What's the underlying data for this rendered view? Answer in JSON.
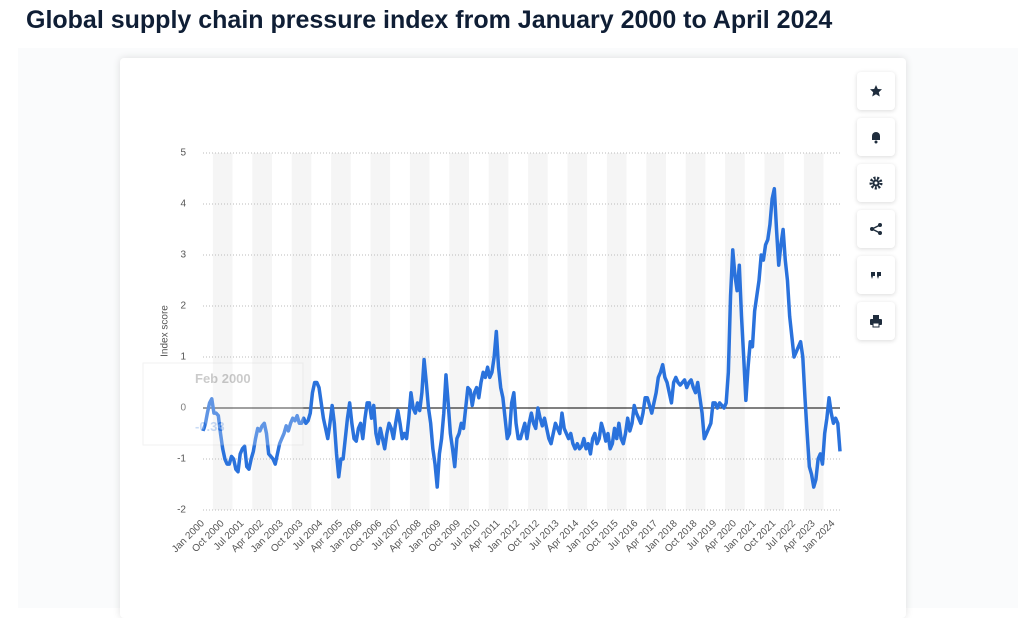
{
  "chart_data": {
    "type": "line",
    "title": "Global supply chain pressure index from January 2000 to April 2024",
    "y_label": "Index score",
    "categories": [
      "Jan 2000",
      null,
      null,
      null,
      null,
      null,
      null,
      null,
      null,
      "Oct 2000",
      null,
      null,
      null,
      null,
      null,
      null,
      null,
      null,
      "Jul 2001",
      null,
      null,
      null,
      null,
      null,
      null,
      null,
      null,
      "Apr 2002",
      null,
      null,
      null,
      null,
      null,
      null,
      null,
      null,
      "Jan 2003",
      null,
      null,
      null,
      null,
      null,
      null,
      null,
      null,
      "Oct 2003",
      null,
      null,
      null,
      null,
      null,
      null,
      null,
      null,
      "Jul 2004",
      null,
      null,
      null,
      null,
      null,
      null,
      null,
      null,
      "Apr 2005",
      null,
      null,
      null,
      null,
      null,
      null,
      null,
      null,
      "Jan 2006",
      null,
      null,
      null,
      null,
      null,
      null,
      null,
      null,
      "Oct 2006",
      null,
      null,
      null,
      null,
      null,
      null,
      null,
      null,
      "Jul 2007",
      null,
      null,
      null,
      null,
      null,
      null,
      null,
      null,
      "Apr 2008",
      null,
      null,
      null,
      null,
      null,
      null,
      null,
      null,
      "Jan 2009",
      null,
      null,
      null,
      null,
      null,
      null,
      null,
      null,
      "Oct 2009",
      null,
      null,
      null,
      null,
      null,
      null,
      null,
      null,
      "Jul 2010",
      null,
      null,
      null,
      null,
      null,
      null,
      null,
      null,
      "Apr 2011",
      null,
      null,
      null,
      null,
      null,
      null,
      null,
      null,
      "Jan 2012",
      null,
      null,
      null,
      null,
      null,
      null,
      null,
      null,
      "Oct 2012",
      null,
      null,
      null,
      null,
      null,
      null,
      null,
      null,
      "Jul 2013",
      null,
      null,
      null,
      null,
      null,
      null,
      null,
      null,
      "Apr 2014",
      null,
      null,
      null,
      null,
      null,
      null,
      null,
      null,
      "Jan 2015",
      null,
      null,
      null,
      null,
      null,
      null,
      null,
      null,
      "Oct 2015",
      null,
      null,
      null,
      null,
      null,
      null,
      null,
      null,
      "Jul 2016",
      null,
      null,
      null,
      null,
      null,
      null,
      null,
      null,
      "Apr 2017",
      null,
      null,
      null,
      null,
      null,
      null,
      null,
      null,
      "Jan 2018",
      null,
      null,
      null,
      null,
      null,
      null,
      null,
      null,
      "Oct 2018",
      null,
      null,
      null,
      null,
      null,
      null,
      null,
      null,
      "Jul 2019",
      null,
      null,
      null,
      null,
      null,
      null,
      null,
      null,
      "Apr 2020",
      null,
      null,
      null,
      null,
      null,
      null,
      null,
      null,
      "Jan 2021",
      null,
      null,
      null,
      null,
      null,
      null,
      null,
      null,
      "Oct 2021",
      null,
      null,
      null,
      null,
      null,
      null,
      null,
      null,
      "Jul 2022",
      null,
      null,
      null,
      null,
      null,
      null,
      null,
      null,
      "Apr 2023",
      null,
      null,
      null,
      null,
      null,
      null,
      null,
      null,
      "Jan 2024",
      null,
      null,
      null
    ],
    "series": [
      {
        "color": "#2a72dc",
        "values": [
          -0.45,
          -0.33,
          -0.1,
          0.1,
          0.18,
          -0.1,
          -0.1,
          -0.15,
          -0.5,
          -0.8,
          -1.0,
          -1.1,
          -1.1,
          -0.95,
          -1.0,
          -1.2,
          -1.25,
          -0.9,
          -0.8,
          -0.75,
          -1.15,
          -1.2,
          -1.0,
          -0.85,
          -0.6,
          -0.4,
          -0.45,
          -0.35,
          -0.3,
          -0.5,
          -0.9,
          -0.95,
          -1.0,
          -1.1,
          -0.9,
          -0.7,
          -0.6,
          -0.5,
          -0.35,
          -0.45,
          -0.3,
          -0.2,
          -0.25,
          -0.15,
          -0.3,
          -0.3,
          -0.2,
          -0.3,
          -0.25,
          -0.1,
          0.3,
          0.5,
          0.5,
          0.4,
          0.1,
          -0.2,
          -0.4,
          -0.6,
          -0.3,
          0.05,
          -0.3,
          -0.9,
          -1.35,
          -1.0,
          -1.0,
          -0.6,
          -0.2,
          0.1,
          -0.3,
          -0.6,
          -0.65,
          -0.4,
          -0.3,
          -0.6,
          -0.2,
          0.1,
          0.1,
          -0.2,
          0.05,
          -0.5,
          -0.7,
          -0.4,
          -0.6,
          -0.8,
          -0.5,
          -0.3,
          -0.4,
          -0.6,
          -0.3,
          -0.05,
          -0.3,
          -0.6,
          -0.5,
          -0.6,
          -0.2,
          0.3,
          0.0,
          -0.1,
          0.1,
          -0.05,
          0.3,
          0.95,
          0.5,
          0.0,
          -0.3,
          -0.8,
          -1.1,
          -1.55,
          -0.9,
          -0.6,
          -0.1,
          0.65,
          0.1,
          -0.5,
          -0.8,
          -1.15,
          -0.6,
          -0.5,
          -0.3,
          -0.4,
          0.0,
          0.4,
          0.35,
          0.05,
          0.3,
          0.4,
          0.2,
          0.5,
          0.7,
          0.6,
          0.8,
          0.6,
          0.7,
          1.0,
          1.5,
          0.8,
          0.4,
          0.2,
          -0.2,
          -0.6,
          -0.5,
          0.1,
          0.3,
          -0.3,
          -0.6,
          -0.6,
          -0.45,
          -0.3,
          -0.6,
          -0.3,
          -0.1,
          -0.3,
          -0.4,
          0.0,
          -0.2,
          -0.35,
          -0.2,
          -0.4,
          -0.6,
          -0.7,
          -0.5,
          -0.3,
          -0.4,
          -0.5,
          -0.1,
          -0.4,
          -0.5,
          -0.6,
          -0.5,
          -0.7,
          -0.8,
          -0.7,
          -0.8,
          -0.75,
          -0.6,
          -0.8,
          -0.7,
          -0.9,
          -0.6,
          -0.5,
          -0.7,
          -0.6,
          -0.3,
          -0.45,
          -0.65,
          -0.5,
          -0.8,
          -0.7,
          -0.4,
          -0.6,
          -0.3,
          -0.6,
          -0.7,
          -0.5,
          -0.2,
          -0.45,
          -0.3,
          0.05,
          -0.1,
          -0.2,
          -0.3,
          -0.1,
          0.2,
          0.2,
          0.05,
          -0.1,
          0.1,
          0.3,
          0.6,
          0.7,
          0.85,
          0.6,
          0.5,
          0.3,
          0.1,
          0.5,
          0.6,
          0.5,
          0.45,
          0.5,
          0.55,
          0.4,
          0.5,
          0.55,
          0.4,
          0.3,
          0.5,
          0.2,
          -0.1,
          -0.6,
          -0.5,
          -0.4,
          -0.3,
          0.1,
          0.1,
          0.0,
          0.1,
          0.05,
          0.0,
          0.1,
          0.7,
          2.2,
          3.1,
          2.6,
          2.3,
          2.8,
          1.8,
          1.0,
          0.15,
          0.8,
          1.3,
          1.2,
          1.9,
          2.2,
          2.5,
          3.0,
          2.9,
          3.2,
          3.3,
          3.6,
          4.1,
          4.3,
          3.5,
          2.8,
          3.2,
          3.5,
          2.9,
          2.5,
          1.8,
          1.4,
          1.0,
          1.1,
          1.2,
          1.3,
          1.0,
          0.2,
          -0.5,
          -1.15,
          -1.3,
          -1.55,
          -1.4,
          -1.0,
          -0.9,
          -1.1,
          -0.5,
          -0.2,
          0.2,
          -0.1,
          -0.3,
          -0.2,
          -0.3,
          -0.85
        ]
      }
    ],
    "ylim": [
      -2,
      5
    ],
    "yticks": [
      -2,
      -1,
      0,
      1,
      2,
      3,
      4,
      5
    ],
    "grid": true,
    "tooltip": {
      "category": "Feb 2000",
      "value": -0.33
    }
  }
}
